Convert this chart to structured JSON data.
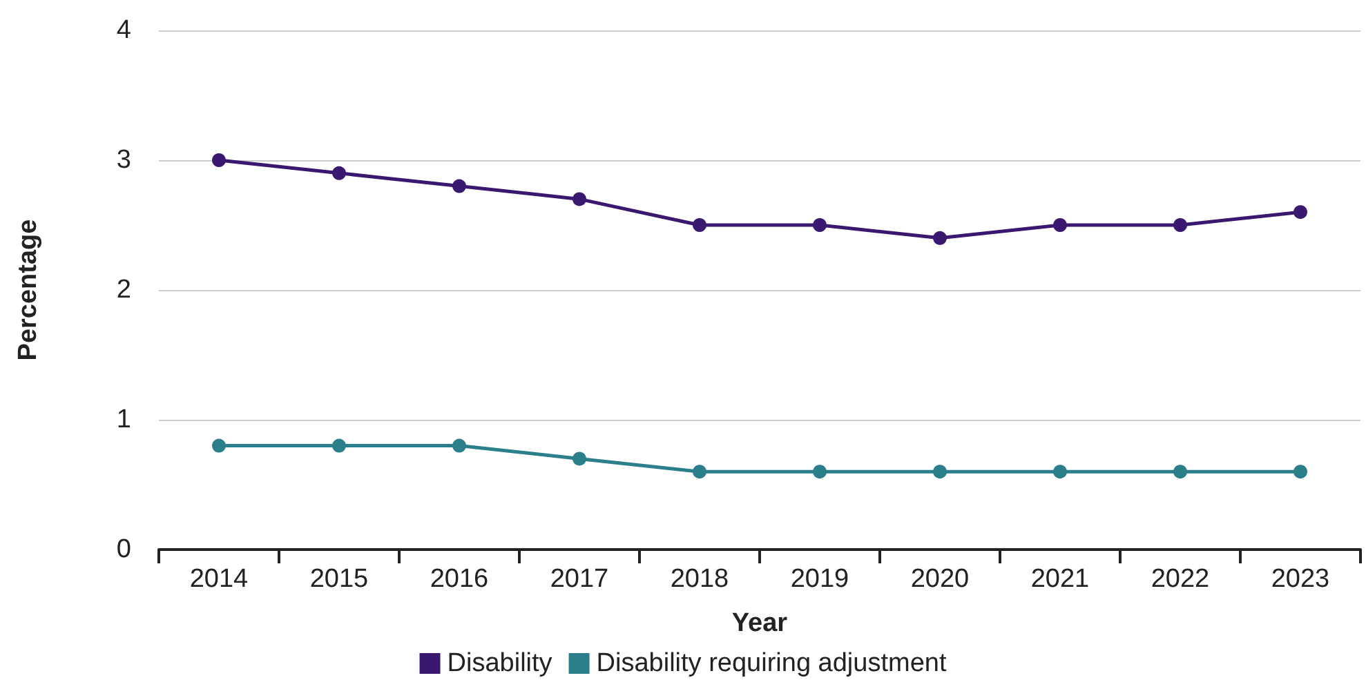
{
  "chart_data": {
    "type": "line",
    "xlabel": "Year",
    "ylabel": "Percentage",
    "categories": [
      "2014",
      "2015",
      "2016",
      "2017",
      "2018",
      "2019",
      "2020",
      "2021",
      "2022",
      "2023"
    ],
    "series": [
      {
        "name": "Disability",
        "color": "#3b1870",
        "values": [
          3.0,
          2.9,
          2.8,
          2.7,
          2.5,
          2.5,
          2.4,
          2.5,
          2.5,
          2.6
        ]
      },
      {
        "name": "Disability requiring adjustment",
        "color": "#2a7f8b",
        "values": [
          0.8,
          0.8,
          0.8,
          0.7,
          0.6,
          0.6,
          0.6,
          0.6,
          0.6,
          0.6
        ]
      }
    ],
    "ylim": [
      0,
      4
    ],
    "yticks": [
      0,
      1,
      2,
      3,
      4
    ],
    "grid": "y",
    "legend": "bottom",
    "marker": "circle",
    "line_style": "solid"
  }
}
